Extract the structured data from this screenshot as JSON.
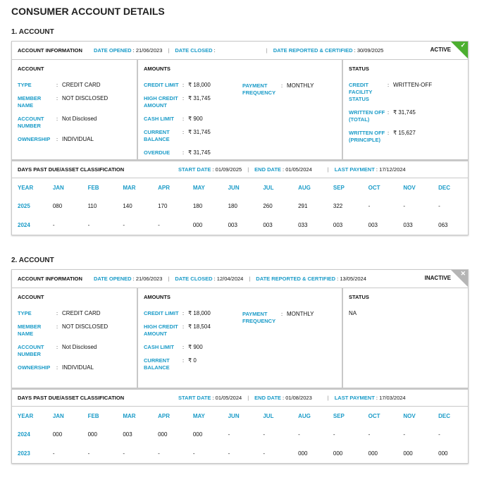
{
  "page_title": "CONSUMER ACCOUNT DETAILS",
  "colors": {
    "accent": "#1a9bc8",
    "active": "#4caf30",
    "inactive": "#b5b5b5"
  },
  "labels": {
    "account_info": "ACCOUNT INFORMATION",
    "date_opened": "DATE OPENED",
    "date_closed": "DATE CLOSED",
    "date_reported": "DATE REPORTED & CERTIFIED",
    "account": "ACCOUNT",
    "amounts": "AMOUNTS",
    "status": "STATUS",
    "type": "TYPE",
    "member_name": "MEMBER NAME",
    "account_number": "ACCOUNT NUMBER",
    "ownership": "OWNERSHIP",
    "credit_limit": "CREDIT LIMIT",
    "high_credit": "HIGH CREDIT AMOUNT",
    "cash_limit": "CASH LIMIT",
    "current_balance": "CURRENT BALANCE",
    "overdue": "OVERDUE",
    "payment_frequency": "PAYMENT FREQUENCY",
    "credit_facility_status": "CREDIT FACILITY STATUS",
    "written_off_total": "WRITTEN OFF (TOTAL)",
    "written_off_principle": "WRITTEN OFF (PRINCIPLE)",
    "dpd": "DAYS PAST DUE/ASSET CLASSIFICATION",
    "start_date": "START DATE",
    "end_date": "END DATE",
    "last_payment": "LAST PAYMENT",
    "year": "YEAR",
    "months": [
      "JAN",
      "FEB",
      "MAR",
      "APR",
      "MAY",
      "JUN",
      "JUL",
      "AUG",
      "SEP",
      "OCT",
      "NOV",
      "DEC"
    ]
  },
  "accounts": [
    {
      "title": "1. ACCOUNT",
      "status": "ACTIVE",
      "status_icon": "check-icon",
      "date_opened": "21/06/2023",
      "date_closed": "",
      "date_reported": "30/09/2025",
      "type": "CREDIT CARD",
      "member_name": "NOT DISCLOSED",
      "account_number": "Not Disclosed",
      "ownership": "INDIVIDUAL",
      "credit_limit": "₹ 18,000",
      "high_credit": "₹ 31,745",
      "cash_limit": "₹ 900",
      "current_balance": "₹ 31,745",
      "overdue": "₹ 31,745",
      "payment_frequency": "MONTHLY",
      "credit_facility_status": "WRITTEN-OFF",
      "written_off_total": "₹ 31,745",
      "written_off_principle": "₹ 15,627",
      "start_date": "01/09/2025",
      "end_date": "01/05/2024",
      "last_payment": "17/12/2024",
      "dpd_rows": [
        {
          "year": "2025",
          "values": [
            "080",
            "110",
            "140",
            "170",
            "180",
            "180",
            "260",
            "291",
            "322",
            "-",
            "-",
            "-"
          ]
        },
        {
          "year": "2024",
          "values": [
            "-",
            "-",
            "-",
            "-",
            "000",
            "003",
            "003",
            "033",
            "003",
            "003",
            "033",
            "063"
          ]
        }
      ]
    },
    {
      "title": "2. ACCOUNT",
      "status": "INACTIVE",
      "status_icon": "close-icon",
      "date_opened": "21/06/2023",
      "date_closed": "12/04/2024",
      "date_reported": "13/05/2024",
      "type": "CREDIT CARD",
      "member_name": "NOT DISCLOSED",
      "account_number": "Not Disclosed",
      "ownership": "INDIVIDUAL",
      "credit_limit": "₹ 18,000",
      "high_credit": "₹ 18,504",
      "cash_limit": "₹ 900",
      "current_balance": "₹ 0",
      "payment_frequency": "MONTHLY",
      "status_value": "NA",
      "start_date": "01/05/2024",
      "end_date": "01/08/2023",
      "last_payment": "17/03/2024",
      "dpd_rows": [
        {
          "year": "2024",
          "values": [
            "000",
            "000",
            "003",
            "000",
            "000",
            "-",
            "-",
            "-",
            "-",
            "-",
            "-",
            "-"
          ]
        },
        {
          "year": "2023",
          "values": [
            "-",
            "-",
            "-",
            "-",
            "-",
            "-",
            "-",
            "000",
            "000",
            "000",
            "000",
            "000"
          ]
        }
      ]
    }
  ]
}
